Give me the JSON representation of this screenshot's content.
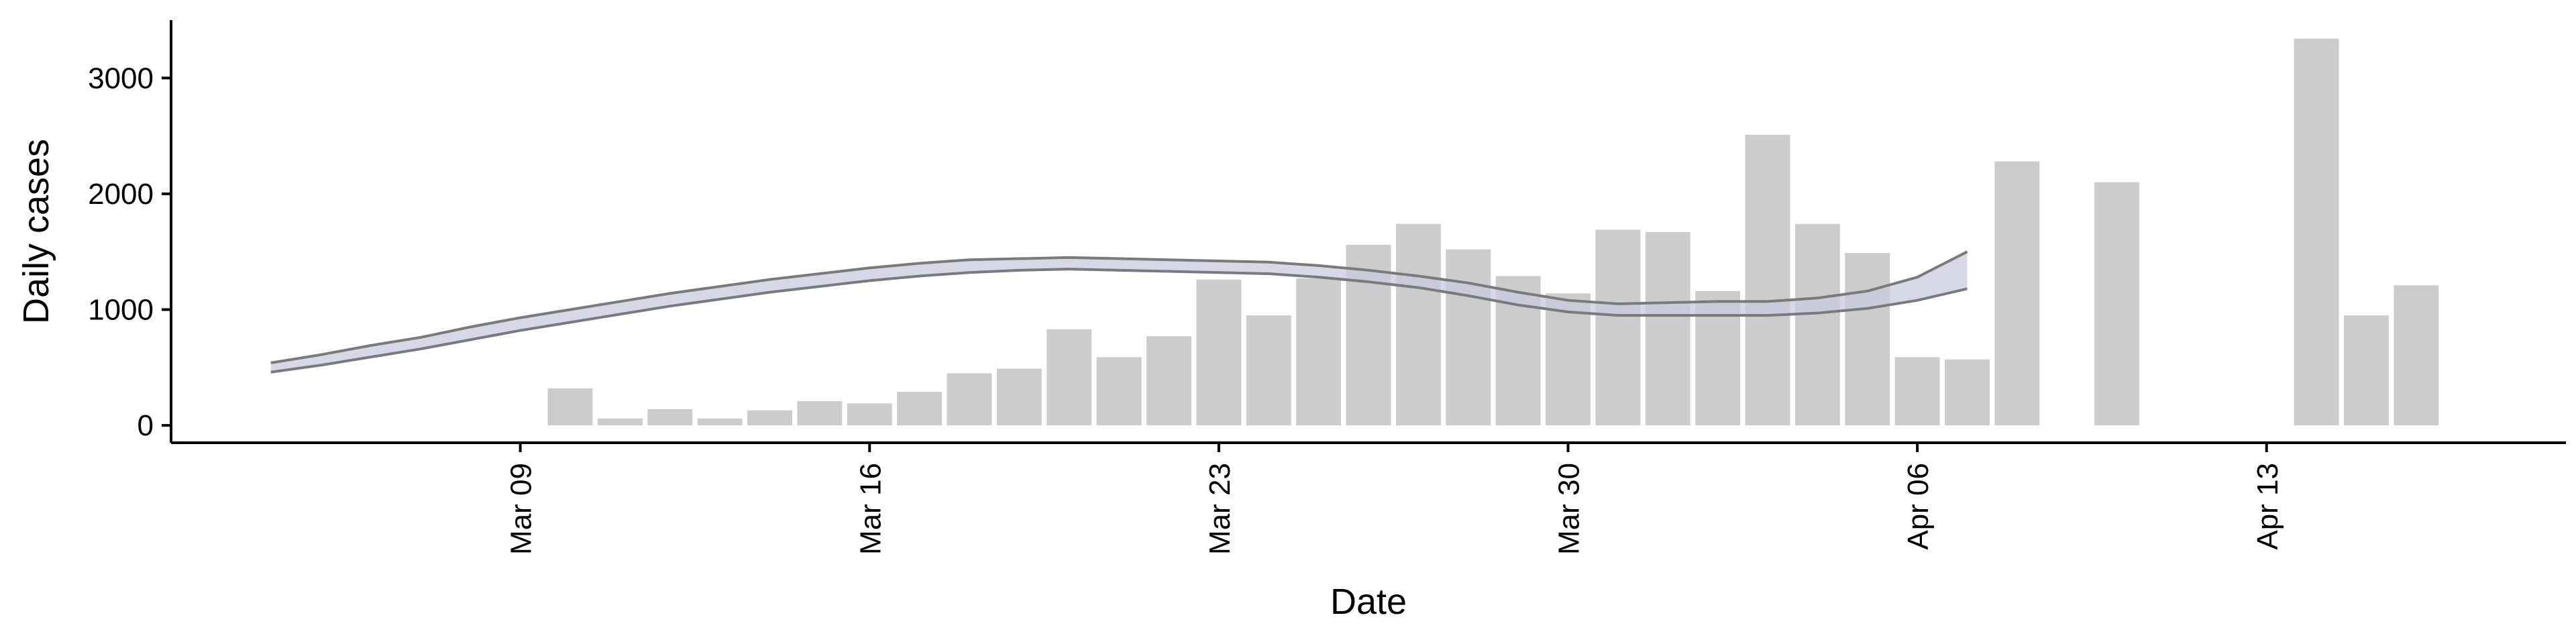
{
  "chart_data": {
    "type": "bar",
    "title": "",
    "xlabel": "Date",
    "ylabel": "Daily cases",
    "x_ticks": [
      "Mar 09",
      "Mar 16",
      "Mar 23",
      "Mar 30",
      "Apr 06",
      "Apr 13"
    ],
    "y_ticks": [
      0,
      1000,
      2000,
      3000
    ],
    "ylim": [
      -150,
      3500
    ],
    "xlim": [
      "2020-03-02",
      "2020-04-19"
    ],
    "grid": false,
    "colors": {
      "bars": "#cccccc",
      "band": "#c8cbe0",
      "band_edge": "#7a7a7a"
    },
    "bars": [
      {
        "date": "2020-03-10",
        "value": 320
      },
      {
        "date": "2020-03-11",
        "value": 60
      },
      {
        "date": "2020-03-12",
        "value": 140
      },
      {
        "date": "2020-03-13",
        "value": 60
      },
      {
        "date": "2020-03-14",
        "value": 130
      },
      {
        "date": "2020-03-15",
        "value": 210
      },
      {
        "date": "2020-03-16",
        "value": 190
      },
      {
        "date": "2020-03-17",
        "value": 290
      },
      {
        "date": "2020-03-18",
        "value": 450
      },
      {
        "date": "2020-03-19",
        "value": 490
      },
      {
        "date": "2020-03-20",
        "value": 830
      },
      {
        "date": "2020-03-21",
        "value": 590
      },
      {
        "date": "2020-03-22",
        "value": 770
      },
      {
        "date": "2020-03-23",
        "value": 1260
      },
      {
        "date": "2020-03-24",
        "value": 950
      },
      {
        "date": "2020-03-25",
        "value": 1270
      },
      {
        "date": "2020-03-26",
        "value": 1560
      },
      {
        "date": "2020-03-27",
        "value": 1740
      },
      {
        "date": "2020-03-28",
        "value": 1520
      },
      {
        "date": "2020-03-29",
        "value": 1290
      },
      {
        "date": "2020-03-30",
        "value": 1140
      },
      {
        "date": "2020-03-31",
        "value": 1690
      },
      {
        "date": "2020-04-01",
        "value": 1670
      },
      {
        "date": "2020-04-02",
        "value": 1160
      },
      {
        "date": "2020-04-03",
        "value": 2510
      },
      {
        "date": "2020-04-04",
        "value": 1740
      },
      {
        "date": "2020-04-05",
        "value": 1490
      },
      {
        "date": "2020-04-06",
        "value": 590
      },
      {
        "date": "2020-04-07",
        "value": 570
      },
      {
        "date": "2020-04-08",
        "value": 2280
      },
      {
        "date": "2020-04-10",
        "value": 2100
      },
      {
        "date": "2020-04-14",
        "value": 3340
      },
      {
        "date": "2020-04-15",
        "value": 950
      },
      {
        "date": "2020-04-16",
        "value": 1210
      }
    ],
    "band": [
      {
        "date": "2020-03-04",
        "lower": 460,
        "upper": 540
      },
      {
        "date": "2020-03-05",
        "lower": 520,
        "upper": 610
      },
      {
        "date": "2020-03-06",
        "lower": 590,
        "upper": 690
      },
      {
        "date": "2020-03-07",
        "lower": 660,
        "upper": 760
      },
      {
        "date": "2020-03-08",
        "lower": 740,
        "upper": 850
      },
      {
        "date": "2020-03-09",
        "lower": 820,
        "upper": 930
      },
      {
        "date": "2020-03-10",
        "lower": 890,
        "upper": 1000
      },
      {
        "date": "2020-03-11",
        "lower": 960,
        "upper": 1070
      },
      {
        "date": "2020-03-12",
        "lower": 1030,
        "upper": 1140
      },
      {
        "date": "2020-03-13",
        "lower": 1090,
        "upper": 1200
      },
      {
        "date": "2020-03-14",
        "lower": 1150,
        "upper": 1260
      },
      {
        "date": "2020-03-15",
        "lower": 1200,
        "upper": 1310
      },
      {
        "date": "2020-03-16",
        "lower": 1250,
        "upper": 1360
      },
      {
        "date": "2020-03-17",
        "lower": 1290,
        "upper": 1400
      },
      {
        "date": "2020-03-18",
        "lower": 1320,
        "upper": 1430
      },
      {
        "date": "2020-03-19",
        "lower": 1340,
        "upper": 1440
      },
      {
        "date": "2020-03-20",
        "lower": 1350,
        "upper": 1450
      },
      {
        "date": "2020-03-21",
        "lower": 1340,
        "upper": 1440
      },
      {
        "date": "2020-03-22",
        "lower": 1330,
        "upper": 1430
      },
      {
        "date": "2020-03-23",
        "lower": 1320,
        "upper": 1420
      },
      {
        "date": "2020-03-24",
        "lower": 1310,
        "upper": 1410
      },
      {
        "date": "2020-03-25",
        "lower": 1280,
        "upper": 1380
      },
      {
        "date": "2020-03-26",
        "lower": 1240,
        "upper": 1340
      },
      {
        "date": "2020-03-27",
        "lower": 1190,
        "upper": 1290
      },
      {
        "date": "2020-03-28",
        "lower": 1120,
        "upper": 1230
      },
      {
        "date": "2020-03-29",
        "lower": 1040,
        "upper": 1150
      },
      {
        "date": "2020-03-30",
        "lower": 980,
        "upper": 1080
      },
      {
        "date": "2020-03-31",
        "lower": 950,
        "upper": 1050
      },
      {
        "date": "2020-04-01",
        "lower": 950,
        "upper": 1060
      },
      {
        "date": "2020-04-02",
        "lower": 950,
        "upper": 1070
      },
      {
        "date": "2020-04-03",
        "lower": 950,
        "upper": 1070
      },
      {
        "date": "2020-04-04",
        "lower": 970,
        "upper": 1100
      },
      {
        "date": "2020-04-05",
        "lower": 1010,
        "upper": 1160
      },
      {
        "date": "2020-04-06",
        "lower": 1080,
        "upper": 1280
      },
      {
        "date": "2020-04-07",
        "lower": 1180,
        "upper": 1500
      }
    ]
  }
}
